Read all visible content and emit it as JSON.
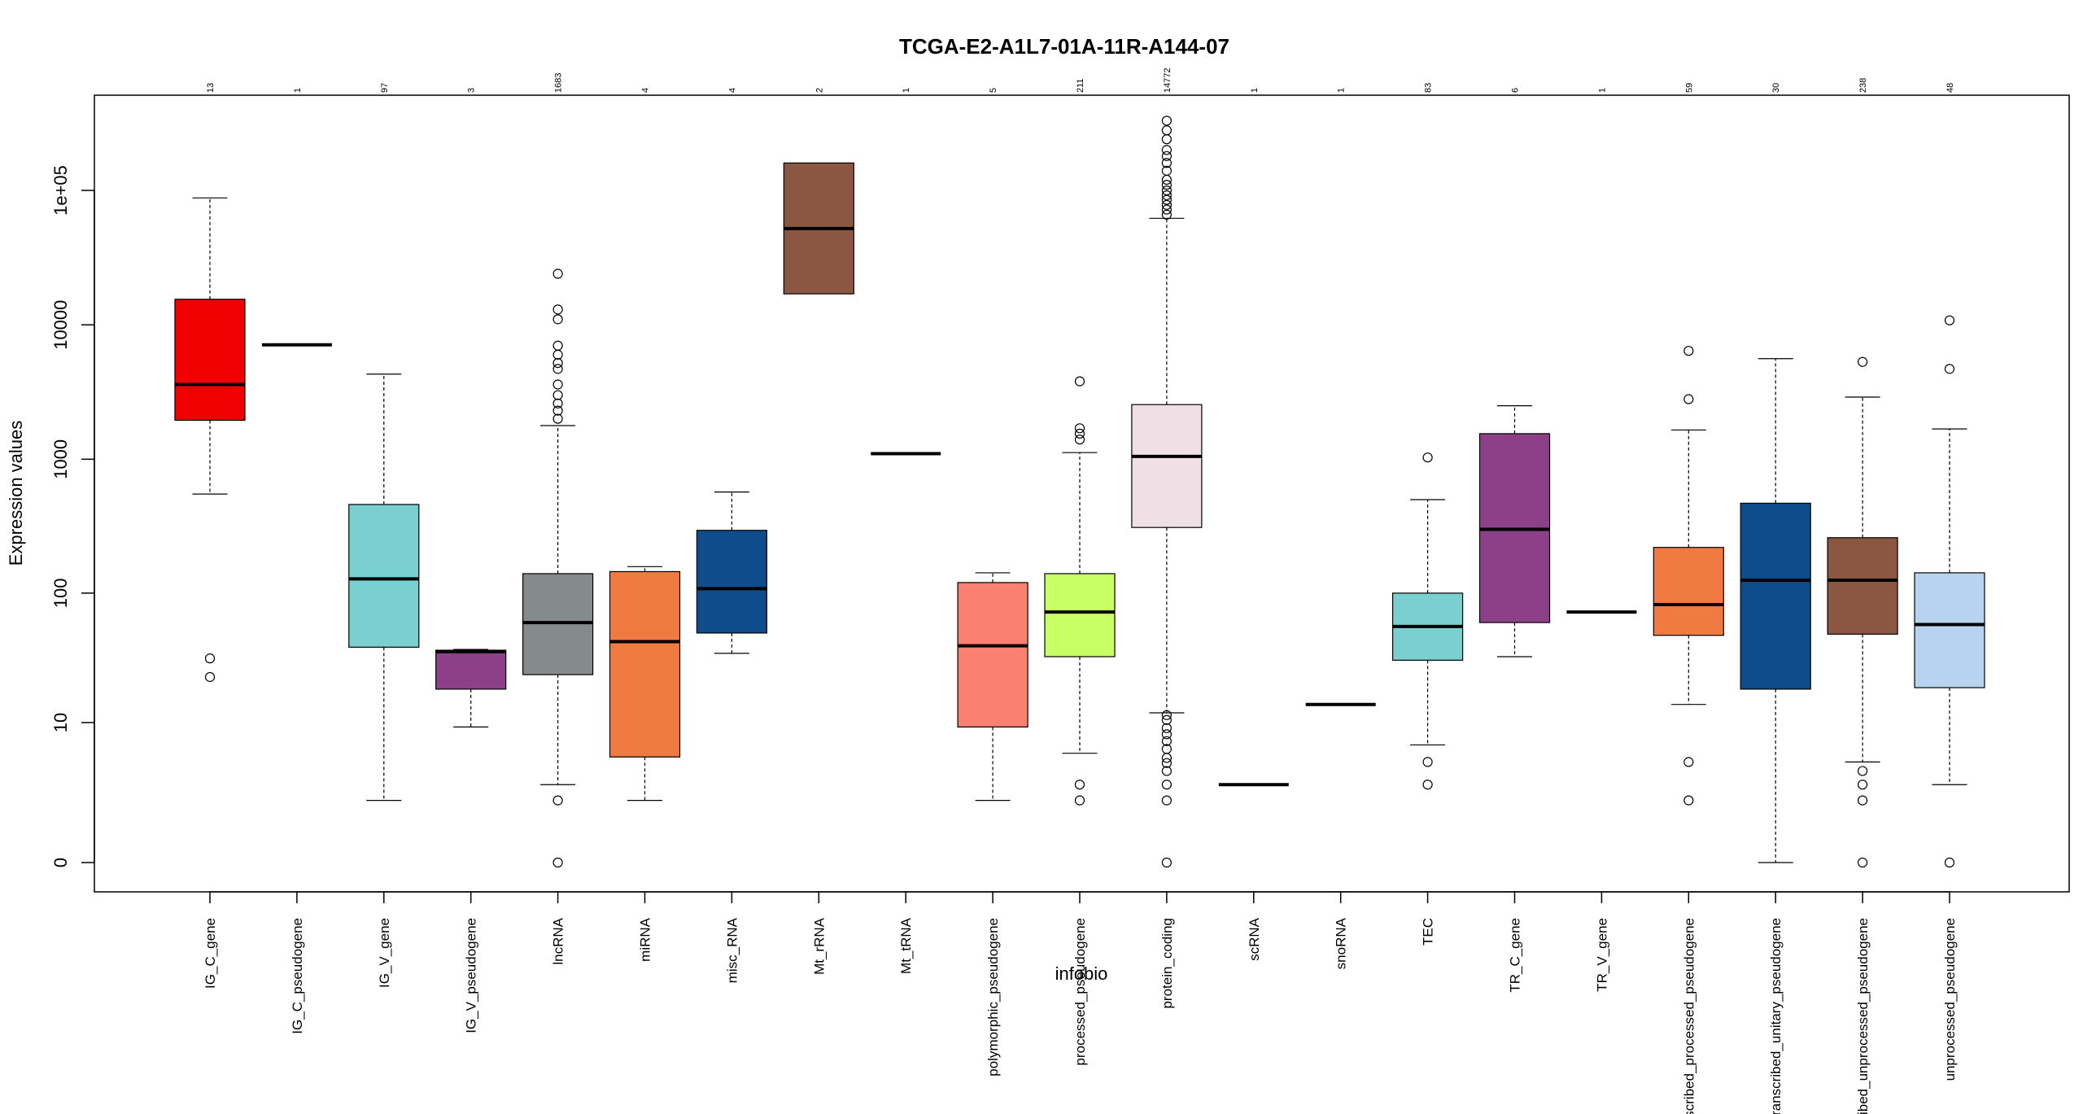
{
  "chart_data": {
    "type": "boxplot",
    "title": "TCGA-E2-A1L7-01A-11R-A144-07",
    "xlabel": "infobio",
    "ylabel": "Expression values",
    "y_scale": "log(1+x)",
    "yticks": [
      {
        "value": 0,
        "label": "0"
      },
      {
        "value": 10,
        "label": "10"
      },
      {
        "value": 100,
        "label": "100"
      },
      {
        "value": 1000,
        "label": "1000"
      },
      {
        "value": 10000,
        "label": "10000"
      },
      {
        "value": 100000,
        "label": "1e+05"
      }
    ],
    "ylim": [
      0,
      350000
    ],
    "grid": false,
    "categories": [
      {
        "name": "IG_C_gene",
        "n": "13",
        "color": "#f00000",
        "whisker_low": 550,
        "q1": 1950,
        "median": 3600,
        "q3": 15500,
        "whisker_high": 88000,
        "outliers": [
          32,
          23
        ]
      },
      {
        "name": "IG_C_pseudogene",
        "n": "1",
        "color": "#ffffff",
        "whisker_low": 7100,
        "q1": 7100,
        "median": 7100,
        "q3": 7100,
        "whisker_high": 7100,
        "outliers": []
      },
      {
        "name": "IG_V_gene",
        "n": "97",
        "color": "#7acfcf",
        "whisker_low": 1.9,
        "q1": 39,
        "median": 128,
        "q3": 460,
        "whisker_high": 4300,
        "outliers": []
      },
      {
        "name": "IG_V_pseudogene",
        "n": "3",
        "color": "#8b4088",
        "whisker_low": 9.2,
        "q1": 18.5,
        "median": 36,
        "q3": 37,
        "whisker_high": 37.5,
        "outliers": []
      },
      {
        "name": "lncRNA",
        "n": "1683",
        "color": "#858b8a",
        "whisker_low": 2.8,
        "q1": 24,
        "median": 60,
        "q3": 140,
        "whisker_high": 1780,
        "outliers": [
          24000,
          13000,
          11000,
          7000,
          6000,
          5200,
          4700,
          3600,
          3000,
          2600,
          2300,
          2000,
          1.9,
          0
        ]
      },
      {
        "name": "miRNA",
        "n": "4",
        "color": "#f07a42",
        "whisker_low": 1.9,
        "q1": 5.1,
        "median": 43,
        "q3": 145,
        "whisker_high": 158,
        "outliers": []
      },
      {
        "name": "misc_RNA",
        "n": "4",
        "color": "#0f4c8b",
        "whisker_low": 35,
        "q1": 50,
        "median": 108,
        "q3": 295,
        "whisker_high": 570,
        "outliers": []
      },
      {
        "name": "Mt_rRNA",
        "n": "2",
        "color": "#8b5743",
        "whisker_low": 17000,
        "q1": 17000,
        "median": 52000,
        "q3": 160000,
        "whisker_high": 160000,
        "outliers": []
      },
      {
        "name": "Mt_tRNA",
        "n": "1",
        "color": "#ffffff",
        "whisker_low": 1100,
        "q1": 1100,
        "median": 1100,
        "q3": 1100,
        "whisker_high": 1100,
        "outliers": []
      },
      {
        "name": "polymorphic_pseudogene",
        "n": "5",
        "color": "#fa8072",
        "whisker_low": 1.9,
        "q1": 9.2,
        "median": 40,
        "q3": 120,
        "whisker_high": 142,
        "outliers": []
      },
      {
        "name": "processed_pseudogene",
        "n": "211",
        "color": "#c8ff64",
        "whisker_low": 5.5,
        "q1": 33,
        "median": 72,
        "q3": 140,
        "whisker_high": 1120,
        "outliers": [
          3800,
          1700,
          1550,
          1400,
          2.8,
          1.9
        ]
      },
      {
        "name": "protein_coding",
        "n": "14772",
        "color": "#f0e0e6",
        "whisker_low": 12,
        "q1": 310,
        "median": 1050,
        "q3": 2550,
        "whisker_high": 62000,
        "outliers": [
          330000,
          280000,
          240000,
          200000,
          180000,
          160000,
          140000,
          120000,
          110000,
          100000,
          92000,
          85000,
          78000,
          72000,
          66000,
          11.5,
          10.5,
          9,
          8,
          7,
          6,
          5,
          4.5,
          3.8,
          2.8,
          1.9,
          0
        ]
      },
      {
        "name": "scRNA",
        "n": "1",
        "color": "#ffffff",
        "whisker_low": 2.8,
        "q1": 2.8,
        "median": 2.8,
        "q3": 2.8,
        "whisker_high": 2.8,
        "outliers": []
      },
      {
        "name": "snoRNA",
        "n": "1",
        "color": "#ffffff",
        "whisker_low": 14,
        "q1": 14,
        "median": 14,
        "q3": 14,
        "whisker_high": 14,
        "outliers": []
      },
      {
        "name": "TEC",
        "n": "83",
        "color": "#7acfcf",
        "whisker_low": 6.5,
        "q1": 31,
        "median": 56,
        "q3": 100,
        "whisker_high": 500,
        "outliers": [
          1030,
          4.6,
          2.8
        ]
      },
      {
        "name": "TR_C_gene",
        "n": "6",
        "color": "#8b4088",
        "whisker_low": 33,
        "q1": 60,
        "median": 300,
        "q3": 1550,
        "whisker_high": 2500,
        "outliers": []
      },
      {
        "name": "TR_V_gene",
        "n": "1",
        "color": "#ffffff",
        "whisker_low": 72,
        "q1": 72,
        "median": 72,
        "q3": 72,
        "whisker_high": 72,
        "outliers": []
      },
      {
        "name": "transcribed_processed_pseudogene",
        "n": "59",
        "color": "#f07a42",
        "whisker_low": 14,
        "q1": 48,
        "median": 82,
        "q3": 220,
        "whisker_high": 1650,
        "outliers": [
          6400,
          2800,
          4.6,
          1.9
        ]
      },
      {
        "name": "transcribed_unitary_pseudogene",
        "n": "30",
        "color": "#0f4c8b",
        "whisker_low": 0,
        "q1": 18.5,
        "median": 125,
        "q3": 470,
        "whisker_high": 5600,
        "outliers": []
      },
      {
        "name": "transcribed_unprocessed_pseudogene",
        "n": "238",
        "color": "#8b5743",
        "whisker_low": 4.6,
        "q1": 49,
        "median": 125,
        "q3": 260,
        "whisker_high": 2900,
        "outliers": [
          5300,
          3.8,
          2.8,
          1.9,
          0
        ]
      },
      {
        "name": "unprocessed_pseudogene",
        "n": "48",
        "color": "#b7d3f0",
        "whisker_low": 2.8,
        "q1": 19,
        "median": 58,
        "q3": 142,
        "whisker_high": 1680,
        "outliers": [
          10800,
          4700,
          0
        ]
      }
    ]
  }
}
